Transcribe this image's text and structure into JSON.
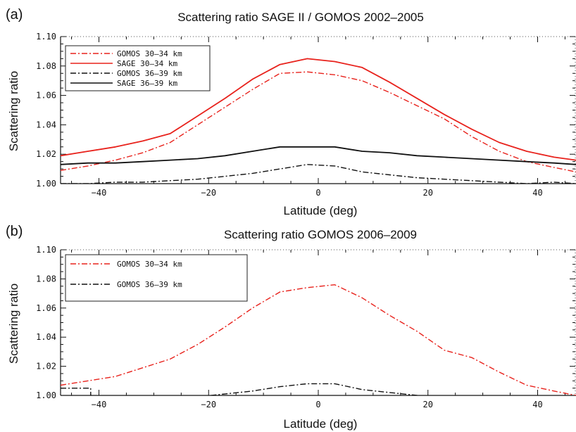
{
  "chart_data": [
    {
      "type": "line",
      "panel": "(a)",
      "title": "Scattering ratio SAGE II / GOMOS 2002–2005",
      "xlabel": "Latitude (deg)",
      "ylabel": "Scattering ratio",
      "xlim": [
        -47,
        47
      ],
      "ylim": [
        1.0,
        1.1
      ],
      "xticks": [
        -40,
        -20,
        0,
        20,
        40
      ],
      "xtick_labels": [
        "−40",
        "−20",
        "0",
        "20",
        "40"
      ],
      "yticks": [
        1.0,
        1.02,
        1.04,
        1.06,
        1.08,
        1.1
      ],
      "ytick_labels": [
        "1.00",
        "1.02",
        "1.04",
        "1.06",
        "1.08",
        "1.10"
      ],
      "grid": false,
      "legend_position": "top-left",
      "series": [
        {
          "name": "GOMOS 30–34 km",
          "color": "#e8221c",
          "style": "dashdot",
          "x": [
            -47,
            -42,
            -37,
            -32,
            -27,
            -22,
            -17,
            -12,
            -7,
            -2,
            3,
            8,
            13,
            18,
            23,
            28,
            33,
            38,
            43,
            47
          ],
          "y": [
            1.009,
            1.012,
            1.016,
            1.021,
            1.028,
            1.04,
            1.052,
            1.064,
            1.075,
            1.076,
            1.074,
            1.07,
            1.062,
            1.053,
            1.044,
            1.032,
            1.022,
            1.015,
            1.011,
            1.008
          ]
        },
        {
          "name": "SAGE 30–34 km",
          "color": "#e8221c",
          "style": "solid",
          "x": [
            -47,
            -42,
            -37,
            -32,
            -27,
            -22,
            -17,
            -12,
            -7,
            -2,
            3,
            8,
            13,
            18,
            23,
            28,
            33,
            38,
            43,
            47
          ],
          "y": [
            1.019,
            1.022,
            1.025,
            1.029,
            1.034,
            1.046,
            1.058,
            1.071,
            1.081,
            1.085,
            1.083,
            1.079,
            1.069,
            1.058,
            1.047,
            1.037,
            1.028,
            1.022,
            1.018,
            1.016
          ]
        },
        {
          "name": "GOMOS 36–39 km",
          "color": "#111111",
          "style": "dashdot",
          "x": [
            -47,
            -42,
            -37,
            -32,
            -27,
            -22,
            -17,
            -12,
            -7,
            -2,
            3,
            8,
            13,
            18,
            23,
            28,
            33,
            38,
            43,
            47
          ],
          "y": [
            1.0,
            1.0,
            1.001,
            1.001,
            1.002,
            1.003,
            1.005,
            1.007,
            1.01,
            1.013,
            1.012,
            1.008,
            1.006,
            1.004,
            1.003,
            1.002,
            1.001,
            1.0,
            1.001,
            1.0
          ]
        },
        {
          "name": "SAGE 36–39 km",
          "color": "#111111",
          "style": "solid",
          "x": [
            -47,
            -42,
            -37,
            -32,
            -27,
            -22,
            -17,
            -12,
            -7,
            -2,
            3,
            8,
            13,
            18,
            23,
            28,
            33,
            38,
            43,
            47
          ],
          "y": [
            1.013,
            1.014,
            1.014,
            1.015,
            1.016,
            1.017,
            1.019,
            1.022,
            1.025,
            1.025,
            1.025,
            1.022,
            1.021,
            1.019,
            1.018,
            1.017,
            1.016,
            1.015,
            1.014,
            1.013
          ]
        }
      ]
    },
    {
      "type": "line",
      "panel": "(b)",
      "title": "Scattering ratio GOMOS 2006–2009",
      "xlabel": "Latitude (deg)",
      "ylabel": "Scattering ratio",
      "xlim": [
        -47,
        47
      ],
      "ylim": [
        1.0,
        1.1
      ],
      "xticks": [
        -40,
        -20,
        0,
        20,
        40
      ],
      "xtick_labels": [
        "−40",
        "−20",
        "0",
        "20",
        "40"
      ],
      "yticks": [
        1.0,
        1.02,
        1.04,
        1.06,
        1.08,
        1.1
      ],
      "ytick_labels": [
        "1.00",
        "1.02",
        "1.04",
        "1.06",
        "1.08",
        "1.10"
      ],
      "grid": false,
      "legend_position": "top-left",
      "series": [
        {
          "name": "GOMOS 30–34 km",
          "color": "#e8221c",
          "style": "dashdot",
          "x": [
            -47,
            -42,
            -37,
            -32,
            -27,
            -22,
            -17,
            -12,
            -7,
            -2,
            3,
            8,
            13,
            18,
            23,
            28,
            33,
            38,
            43,
            47
          ],
          "y": [
            1.007,
            1.01,
            1.013,
            1.019,
            1.025,
            1.035,
            1.047,
            1.06,
            1.071,
            1.074,
            1.076,
            1.067,
            1.055,
            1.044,
            1.031,
            1.026,
            1.016,
            1.007,
            1.003,
            1.0
          ]
        },
        {
          "name": "GOMOS 36–39 km",
          "color": "#111111",
          "style": "dashdot",
          "x": [
            -47,
            -41.5,
            -41.5,
            -37,
            -32,
            -27,
            -22,
            -17,
            -12,
            -7,
            -2,
            3,
            8,
            13,
            18,
            23,
            28,
            33,
            38,
            43,
            47
          ],
          "y": [
            1.005,
            1.005,
            1.0,
            0.998,
            0.998,
            0.999,
            0.999,
            1.001,
            1.003,
            1.006,
            1.008,
            1.008,
            1.004,
            1.002,
            1.0,
            0.999,
            0.998,
            0.999,
            0.999,
            0.998,
            0.998
          ]
        }
      ]
    }
  ]
}
